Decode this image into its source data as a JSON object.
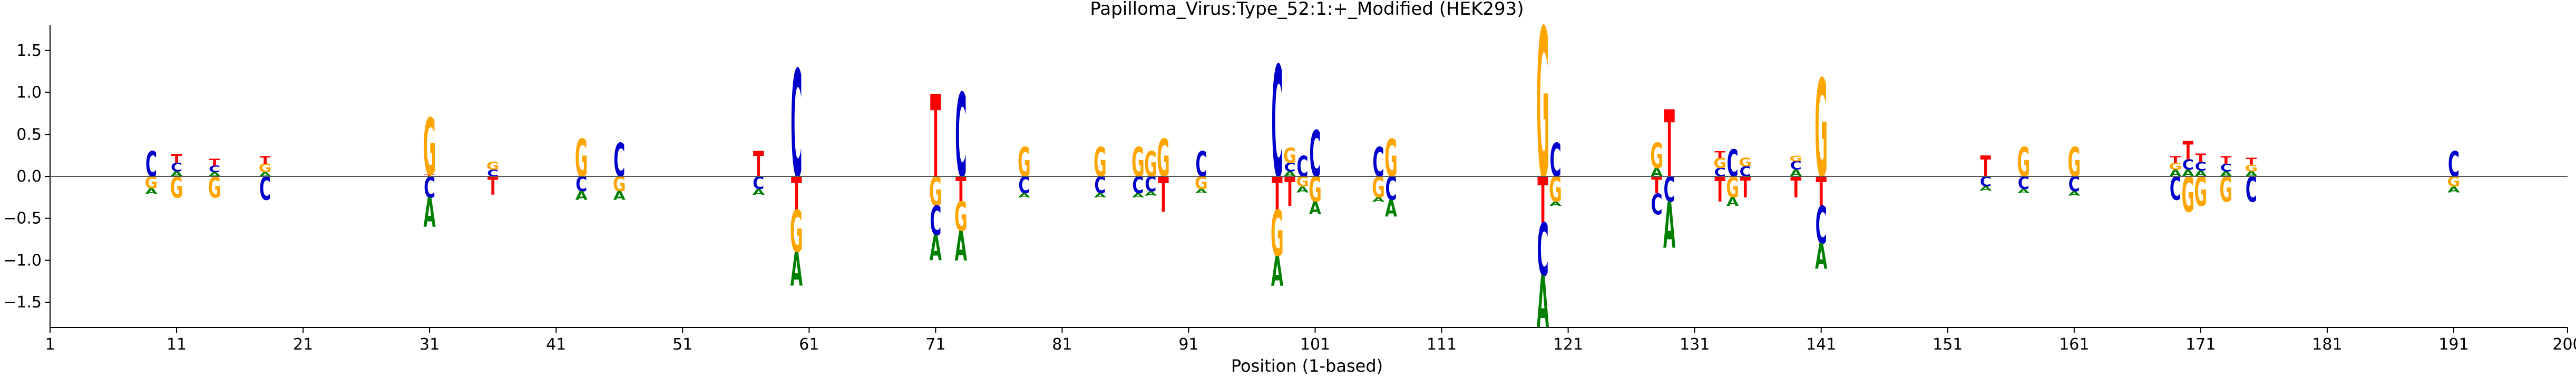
{
  "chart_data": {
    "type": "sequence-logo",
    "title": "Papilloma_Virus:Type_52:1:+_Modified  (HEK293)",
    "xlabel": "Position (1-based)",
    "ylabel": "",
    "xlim": [
      1,
      200
    ],
    "ylim": [
      -1.8,
      1.8
    ],
    "xticks": [
      1,
      11,
      21,
      31,
      41,
      51,
      61,
      71,
      81,
      91,
      101,
      111,
      121,
      131,
      141,
      151,
      161,
      171,
      181,
      191,
      200
    ],
    "yticks": [
      -1.5,
      -1.0,
      -0.5,
      0.0,
      0.5,
      1.0,
      1.5
    ],
    "ytick_labels": [
      "−1.5",
      "−1.0",
      "−0.5",
      "0.0",
      "0.5",
      "1.0",
      "1.5"
    ],
    "grid": false,
    "letter_colors": {
      "A": "#008000",
      "C": "#0000cc",
      "G": "#ffa500",
      "T": "#ff0000"
    },
    "positions": [
      {
        "pos": 9,
        "up": [
          [
            "C",
            0.3
          ]
        ],
        "down": [
          [
            "G",
            0.14
          ],
          [
            "A",
            0.07
          ]
        ]
      },
      {
        "pos": 11,
        "up": [
          [
            "A",
            0.06
          ],
          [
            "C",
            0.1
          ],
          [
            "T",
            0.1
          ]
        ],
        "down": [
          [
            "G",
            0.25
          ]
        ]
      },
      {
        "pos": 14,
        "up": [
          [
            "A",
            0.05
          ],
          [
            "C",
            0.08
          ],
          [
            "T",
            0.08
          ]
        ],
        "down": [
          [
            "G",
            0.25
          ]
        ]
      },
      {
        "pos": 18,
        "up": [
          [
            "A",
            0.05
          ],
          [
            "G",
            0.1
          ],
          [
            "T",
            0.09
          ]
        ],
        "down": [
          [
            "C",
            0.28
          ]
        ]
      },
      {
        "pos": 31,
        "up": [
          [
            "T",
            0.02
          ],
          [
            "G",
            0.68
          ]
        ],
        "down": [
          [
            "C",
            0.25
          ],
          [
            "A",
            0.35
          ]
        ]
      },
      {
        "pos": 36,
        "up": [
          [
            "C",
            0.08
          ],
          [
            "G",
            0.09
          ]
        ],
        "down": [
          [
            "T",
            0.22
          ]
        ]
      },
      {
        "pos": 43,
        "up": [
          [
            "G",
            0.45
          ]
        ],
        "down": [
          [
            "C",
            0.18
          ],
          [
            "A",
            0.1
          ]
        ]
      },
      {
        "pos": 46,
        "up": [
          [
            "C",
            0.4
          ]
        ],
        "down": [
          [
            "G",
            0.18
          ],
          [
            "A",
            0.1
          ]
        ]
      },
      {
        "pos": 57,
        "up": [
          [
            "T",
            0.3
          ]
        ],
        "down": [
          [
            "C",
            0.15
          ],
          [
            "A",
            0.07
          ]
        ]
      },
      {
        "pos": 60,
        "up": [
          [
            "C",
            1.28
          ]
        ],
        "down": [
          [
            "T",
            0.4
          ],
          [
            "G",
            0.5
          ],
          [
            "A",
            0.4
          ]
        ]
      },
      {
        "pos": 71,
        "up": [
          [
            "T",
            0.98
          ]
        ],
        "down": [
          [
            "G",
            0.35
          ],
          [
            "C",
            0.35
          ],
          [
            "A",
            0.3
          ]
        ]
      },
      {
        "pos": 73,
        "up": [
          [
            "C",
            1.0
          ]
        ],
        "down": [
          [
            "T",
            0.3
          ],
          [
            "G",
            0.35
          ],
          [
            "A",
            0.35
          ]
        ]
      },
      {
        "pos": 78,
        "up": [
          [
            "G",
            0.35
          ]
        ],
        "down": [
          [
            "C",
            0.2
          ],
          [
            "A",
            0.05
          ]
        ]
      },
      {
        "pos": 84,
        "up": [
          [
            "G",
            0.35
          ]
        ],
        "down": [
          [
            "C",
            0.2
          ],
          [
            "A",
            0.05
          ]
        ]
      },
      {
        "pos": 87,
        "up": [
          [
            "G",
            0.35
          ]
        ],
        "down": [
          [
            "C",
            0.2
          ],
          [
            "A",
            0.05
          ]
        ]
      },
      {
        "pos": 88,
        "up": [
          [
            "G",
            0.3
          ]
        ],
        "down": [
          [
            "C",
            0.18
          ],
          [
            "A",
            0.05
          ]
        ]
      },
      {
        "pos": 89,
        "up": [
          [
            "G",
            0.45
          ]
        ],
        "down": [
          [
            "T",
            0.42
          ]
        ]
      },
      {
        "pos": 92,
        "up": [
          [
            "C",
            0.3
          ]
        ],
        "down": [
          [
            "G",
            0.15
          ],
          [
            "A",
            0.05
          ]
        ]
      },
      {
        "pos": 98,
        "up": [
          [
            "C",
            1.33
          ]
        ],
        "down": [
          [
            "T",
            0.4
          ],
          [
            "G",
            0.55
          ],
          [
            "A",
            0.35
          ]
        ]
      },
      {
        "pos": 99,
        "up": [
          [
            "A",
            0.06
          ],
          [
            "C",
            0.1
          ],
          [
            "G",
            0.18
          ]
        ],
        "down": [
          [
            "T",
            0.35
          ]
        ]
      },
      {
        "pos": 100,
        "up": [
          [
            "C",
            0.25
          ]
        ],
        "down": [
          [
            "G",
            0.12
          ],
          [
            "A",
            0.07
          ]
        ]
      },
      {
        "pos": 101,
        "up": [
          [
            "C",
            0.55
          ]
        ],
        "down": [
          [
            "G",
            0.3
          ],
          [
            "A",
            0.15
          ]
        ]
      },
      {
        "pos": 106,
        "up": [
          [
            "C",
            0.35
          ]
        ],
        "down": [
          [
            "G",
            0.25
          ],
          [
            "A",
            0.05
          ]
        ]
      },
      {
        "pos": 107,
        "up": [
          [
            "G",
            0.45
          ]
        ],
        "down": [
          [
            "C",
            0.28
          ],
          [
            "A",
            0.2
          ]
        ]
      },
      {
        "pos": 119,
        "up": [
          [
            "G",
            1.78
          ]
        ],
        "down": [
          [
            "T",
            0.55
          ],
          [
            "C",
            0.63
          ],
          [
            "A",
            0.62
          ]
        ]
      },
      {
        "pos": 120,
        "up": [
          [
            "C",
            0.4
          ]
        ],
        "down": [
          [
            "G",
            0.3
          ],
          [
            "A",
            0.05
          ]
        ]
      },
      {
        "pos": 128,
        "up": [
          [
            "A",
            0.1
          ],
          [
            "G",
            0.3
          ]
        ],
        "down": [
          [
            "T",
            0.2
          ],
          [
            "C",
            0.25
          ]
        ]
      },
      {
        "pos": 129,
        "up": [
          [
            "T",
            0.8
          ]
        ],
        "down": [
          [
            "C",
            0.3
          ],
          [
            "A",
            0.55
          ]
        ]
      },
      {
        "pos": 133,
        "up": [
          [
            "C",
            0.1
          ],
          [
            "G",
            0.12
          ],
          [
            "T",
            0.08
          ]
        ],
        "down": [
          [
            "T",
            0.3
          ]
        ]
      },
      {
        "pos": 134,
        "up": [
          [
            "C",
            0.32
          ]
        ],
        "down": [
          [
            "G",
            0.25
          ],
          [
            "A",
            0.1
          ]
        ]
      },
      {
        "pos": 135,
        "up": [
          [
            "C",
            0.12
          ],
          [
            "G",
            0.1
          ]
        ],
        "down": [
          [
            "T",
            0.25
          ]
        ]
      },
      {
        "pos": 139,
        "up": [
          [
            "A",
            0.08
          ],
          [
            "C",
            0.1
          ],
          [
            "G",
            0.07
          ]
        ],
        "down": [
          [
            "T",
            0.25
          ]
        ]
      },
      {
        "pos": 141,
        "up": [
          [
            "G",
            1.17
          ]
        ],
        "down": [
          [
            "T",
            0.35
          ],
          [
            "C",
            0.45
          ],
          [
            "A",
            0.3
          ]
        ]
      },
      {
        "pos": 154,
        "up": [
          [
            "T",
            0.25
          ]
        ],
        "down": [
          [
            "C",
            0.12
          ],
          [
            "A",
            0.05
          ]
        ]
      },
      {
        "pos": 157,
        "up": [
          [
            "G",
            0.35
          ]
        ],
        "down": [
          [
            "C",
            0.15
          ],
          [
            "A",
            0.05
          ]
        ]
      },
      {
        "pos": 161,
        "up": [
          [
            "G",
            0.35
          ]
        ],
        "down": [
          [
            "C",
            0.18
          ],
          [
            "A",
            0.05
          ]
        ]
      },
      {
        "pos": 169,
        "up": [
          [
            "A",
            0.08
          ],
          [
            "G",
            0.08
          ],
          [
            "T",
            0.08
          ]
        ],
        "down": [
          [
            "C",
            0.28
          ]
        ]
      },
      {
        "pos": 170,
        "up": [
          [
            "A",
            0.08
          ],
          [
            "C",
            0.12
          ],
          [
            "T",
            0.22
          ]
        ],
        "down": [
          [
            "G",
            0.42
          ]
        ]
      },
      {
        "pos": 171,
        "up": [
          [
            "A",
            0.07
          ],
          [
            "C",
            0.1
          ],
          [
            "T",
            0.1
          ]
        ],
        "down": [
          [
            "G",
            0.35
          ]
        ]
      },
      {
        "pos": 173,
        "up": [
          [
            "A",
            0.06
          ],
          [
            "C",
            0.09
          ],
          [
            "T",
            0.09
          ]
        ],
        "down": [
          [
            "G",
            0.3
          ]
        ]
      },
      {
        "pos": 175,
        "up": [
          [
            "A",
            0.06
          ],
          [
            "G",
            0.08
          ],
          [
            "T",
            0.08
          ]
        ],
        "down": [
          [
            "C",
            0.3
          ]
        ]
      },
      {
        "pos": 191,
        "up": [
          [
            "C",
            0.3
          ]
        ],
        "down": [
          [
            "G",
            0.12
          ],
          [
            "A",
            0.07
          ]
        ]
      }
    ]
  }
}
